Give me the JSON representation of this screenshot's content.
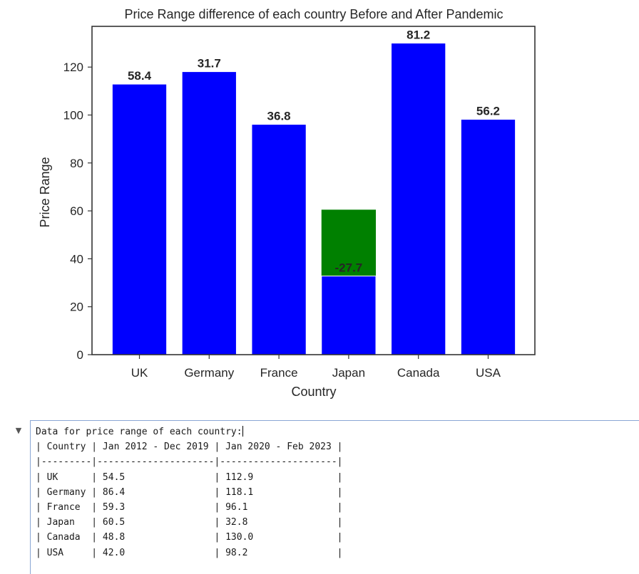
{
  "chart_data": {
    "type": "bar",
    "title": "Price Range difference of each country Before and After Pandemic",
    "xlabel": "Country",
    "ylabel": "Price Range",
    "ylim": [
      0,
      137
    ],
    "yticks": [
      0,
      20,
      40,
      60,
      80,
      100,
      120
    ],
    "categories": [
      "UK",
      "Germany",
      "France",
      "Japan",
      "Canada",
      "USA"
    ],
    "before_values": [
      54.5,
      86.4,
      59.3,
      60.5,
      48.8,
      42.0
    ],
    "after_values": [
      112.9,
      118.1,
      96.1,
      32.8,
      130.0,
      98.2
    ],
    "difference_labels": [
      "58.4",
      "31.7",
      "36.8",
      "-27.7",
      "81.2",
      "56.2"
    ],
    "colors": {
      "after_bar": "#0000ff",
      "before_bar": "#008000",
      "frame": "#333333"
    },
    "grid": false
  },
  "output": {
    "header": "Data for price range of each country:",
    "table_header": "| Country | Jan 2012 - Dec 2019 | Jan 2020 - Feb 2023 |",
    "table_separator": "|---------|---------------------|---------------------|",
    "rows": [
      "| UK      | 54.5                | 112.9               |",
      "| Germany | 86.4                | 118.1               |",
      "| France  | 59.3                | 96.1                |",
      "| Japan   | 60.5                | 32.8                |",
      "| Canada  | 48.8                | 130.0               |",
      "| USA     | 42.0                | 98.2                |"
    ]
  },
  "cell_toggle_icon": "triangle-down"
}
